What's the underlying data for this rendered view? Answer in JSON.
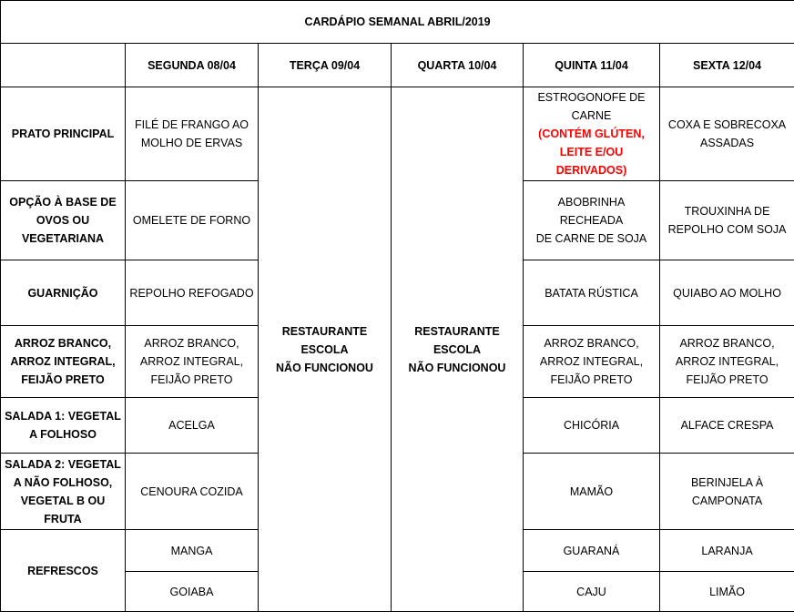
{
  "title": "CARDÁPIO SEMANAL ABRIL/2019",
  "days": [
    "SEGUNDA 08/04",
    "TERÇA 09/04",
    "QUARTA 10/04",
    "QUINTA 11/04",
    "SEXTA 12/04"
  ],
  "closed_text": "RESTAURANTE ESCOLA\nNÃO FUNCIONOU",
  "rows": [
    {
      "label": "PRATO PRINCIPAL",
      "mon": "FILÉ DE FRANGO AO\nMOLHO DE ERVAS",
      "thu": "ESTROGONOFE DE\nCARNE",
      "thu_note": "(CONTÉM GLÚTEN,\nLEITE E/OU\nDERIVADOS)",
      "fri": "COXA E SOBRECOXA\nASSADAS"
    },
    {
      "label": "OPÇÃO À BASE DE\nOVOS OU\nVEGETARIANA",
      "mon": "OMELETE DE FORNO",
      "thu": "ABOBRINHA RECHEADA\nDE CARNE DE SOJA",
      "fri": "TROUXINHA DE\nREPOLHO COM SOJA"
    },
    {
      "label": "GUARNIÇÃO",
      "mon": "REPOLHO REFOGADO",
      "thu": "BATATA RÚSTICA",
      "fri": "QUIABO AO MOLHO"
    },
    {
      "label": "ARROZ BRANCO,\nARROZ INTEGRAL,\nFEIJÃO PRETO",
      "mon": "ARROZ BRANCO,\nARROZ INTEGRAL,\nFEIJÃO PRETO",
      "thu": "ARROZ BRANCO,\nARROZ INTEGRAL,\nFEIJÃO PRETO",
      "fri": "ARROZ BRANCO,\nARROZ INTEGRAL,\nFEIJÃO PRETO"
    },
    {
      "label": "SALADA 1: VEGETAL\nA FOLHOSO",
      "mon": "ACELGA",
      "thu": "CHICÓRIA",
      "fri": "ALFACE CRESPA"
    },
    {
      "label": "SALADA 2: VEGETAL\nA NÃO FOLHOSO,\nVEGETAL B OU\nFRUTA",
      "mon": "CENOURA COZIDA",
      "thu": "MAMÃO",
      "fri": "BERINJELA À\nCAMPONATA"
    },
    {
      "label": "REFRESCOS",
      "mon": "MANGA",
      "thu": "GUARANÁ",
      "fri": "LARANJA"
    },
    {
      "mon": "GOIABA",
      "thu": "CAJU",
      "fri": "LIMÃO"
    }
  ],
  "colors": {
    "warning": "#ff0000"
  }
}
